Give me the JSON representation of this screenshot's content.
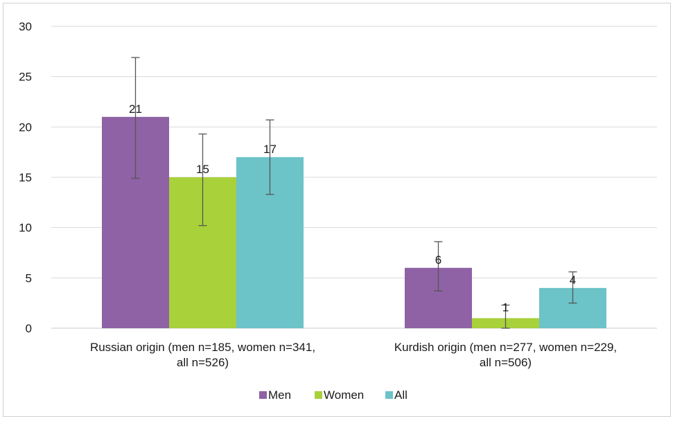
{
  "chart_data": {
    "type": "bar",
    "categories": [
      [
        "Russian origin (men n=185, women n=341,",
        "all n=526)"
      ],
      [
        "Kurdish origin (men n=277, women n=229,",
        "all n=506)"
      ]
    ],
    "series": [
      {
        "name": "Men",
        "color": "#8e62a4",
        "values": [
          21,
          6
        ],
        "error_low": [
          14.9,
          3.7
        ],
        "error_high": [
          26.9,
          8.6
        ],
        "labels": [
          "21",
          "6"
        ]
      },
      {
        "name": "Women",
        "color": "#a8d13a",
        "values": [
          15,
          1
        ],
        "error_low": [
          10.2,
          0
        ],
        "error_high": [
          19.3,
          2.3
        ],
        "labels": [
          "15",
          "1"
        ]
      },
      {
        "name": "All",
        "color": "#6cc3c8",
        "values": [
          17,
          4
        ],
        "error_low": [
          13.3,
          2.5
        ],
        "error_high": [
          20.7,
          5.6
        ],
        "labels": [
          "17",
          "4"
        ]
      }
    ],
    "ylim": [
      0,
      30
    ],
    "yticks": [
      0,
      5,
      10,
      15,
      20,
      25,
      30
    ],
    "grid": true,
    "legend_position": "bottom"
  }
}
